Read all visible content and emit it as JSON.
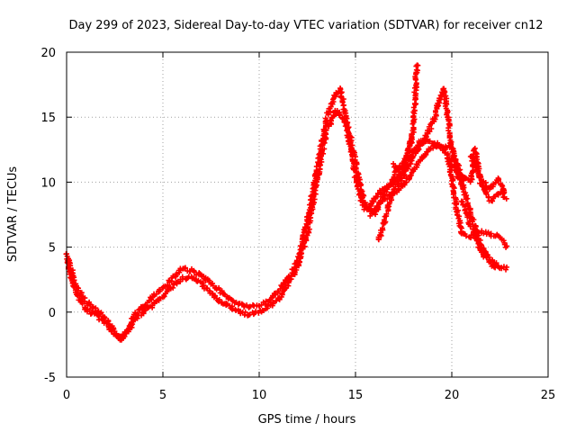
{
  "chart_data": {
    "type": "scatter",
    "title": "Day 299 of 2023, Sidereal Day-to-day VTEC variation (SDTVAR) for receiver cn12",
    "xlabel": "GPS time / hours",
    "ylabel": "SDTVAR / TECUs",
    "xlim": [
      0,
      25
    ],
    "ylim": [
      -5,
      20
    ],
    "xticks": [
      0,
      5,
      10,
      15,
      20,
      25
    ],
    "yticks": [
      -5,
      0,
      5,
      10,
      15,
      20
    ],
    "grid": true,
    "marker": "plus",
    "series": [
      {
        "name": "track-a",
        "color": "#ff0000",
        "x": [
          0.0,
          0.5,
          1.0,
          1.5,
          2.0,
          2.5,
          2.8,
          3.2,
          3.5,
          4.0,
          4.5,
          5.0,
          5.5,
          6.0,
          6.5,
          7.0,
          7.5,
          8.0,
          8.5,
          9.0,
          9.5,
          10.0,
          10.5,
          11.0,
          11.5,
          12.0,
          12.5,
          13.0,
          13.5,
          14.0,
          14.2,
          14.5,
          15.0,
          15.5,
          16.0,
          16.5,
          17.0,
          17.5,
          18.0
        ],
        "y": [
          4.5,
          2.0,
          0.8,
          0.3,
          -0.5,
          -1.5,
          -2.0,
          -1.2,
          -0.2,
          0.4,
          1.2,
          1.8,
          2.6,
          3.4,
          3.2,
          2.8,
          2.2,
          1.6,
          1.0,
          0.6,
          0.4,
          0.5,
          0.9,
          1.6,
          2.5,
          4.0,
          7.0,
          11.0,
          15.0,
          16.8,
          17.2,
          15.0,
          11.5,
          8.0,
          7.6,
          9.0,
          10.5,
          11.5,
          13.5
        ]
      },
      {
        "name": "track-b",
        "color": "#ff0000",
        "x": [
          0.0,
          0.5,
          1.0,
          1.5,
          2.0,
          2.5,
          2.8,
          3.2,
          3.5,
          4.0,
          4.5,
          5.0,
          5.5,
          6.0,
          6.5,
          7.0,
          7.5,
          8.0,
          8.5,
          9.0,
          9.5,
          10.0,
          10.5,
          11.0,
          11.5,
          12.0,
          12.5,
          13.0,
          13.5,
          14.0,
          14.5,
          15.0,
          15.3,
          15.7,
          16.0,
          16.5,
          17.0,
          17.5,
          18.0,
          18.2
        ],
        "y": [
          4.0,
          1.5,
          0.2,
          -0.2,
          -0.8,
          -1.7,
          -2.2,
          -1.5,
          -0.6,
          0.0,
          0.6,
          1.2,
          2.0,
          2.6,
          2.6,
          2.2,
          1.4,
          0.8,
          0.4,
          0.0,
          -0.2,
          0.0,
          0.4,
          1.0,
          2.2,
          3.5,
          6.0,
          10.0,
          14.0,
          15.5,
          14.5,
          10.5,
          8.5,
          8.0,
          8.8,
          9.5,
          10.0,
          11.0,
          14.0,
          19.2
        ]
      },
      {
        "name": "track-c",
        "color": "#ff0000",
        "x": [
          16.2,
          16.6,
          17.0,
          17.5,
          18.0,
          18.5,
          19.0,
          19.4,
          19.6,
          19.8,
          20.0,
          20.3,
          20.6
        ],
        "y": [
          5.5,
          7.5,
          9.5,
          10.5,
          12.0,
          13.0,
          14.5,
          16.5,
          17.2,
          15.0,
          12.5,
          10.5,
          9.5
        ]
      },
      {
        "name": "track-d",
        "color": "#ff0000",
        "x": [
          15.8,
          16.3,
          16.8,
          17.3,
          17.8,
          18.3,
          18.8,
          19.3,
          19.8,
          20.2,
          20.5,
          21.0,
          21.5,
          22.0,
          22.5,
          22.9
        ],
        "y": [
          7.5,
          8.5,
          9.0,
          9.5,
          10.5,
          11.5,
          12.5,
          13.0,
          12.0,
          8.5,
          6.0,
          5.8,
          6.2,
          6.0,
          5.8,
          5.0
        ]
      },
      {
        "name": "track-e",
        "color": "#ff0000",
        "x": [
          17.0,
          17.5,
          18.0,
          18.5,
          19.0,
          19.5,
          20.0,
          20.4,
          20.7,
          21.0,
          21.5,
          22.0,
          22.5,
          22.9
        ],
        "y": [
          11.3,
          11.0,
          12.5,
          13.3,
          13.0,
          12.6,
          12.8,
          11.0,
          9.0,
          7.5,
          5.2,
          4.0,
          3.5,
          3.3
        ]
      },
      {
        "name": "track-f",
        "color": "#ff0000",
        "x": [
          19.8,
          20.2,
          20.5,
          21.0,
          21.2,
          21.5,
          22.0,
          22.5,
          22.9
        ],
        "y": [
          12.0,
          11.0,
          10.5,
          10.0,
          12.5,
          10.0,
          8.5,
          9.2,
          8.8
        ]
      },
      {
        "name": "track-g",
        "color": "#ff0000",
        "x": [
          20.5,
          20.8,
          21.0,
          21.3,
          21.6,
          22.0,
          22.3
        ],
        "y": [
          8.5,
          7.5,
          6.5,
          5.5,
          4.5,
          3.8,
          3.4
        ]
      },
      {
        "name": "track-h",
        "color": "#ff0000",
        "x": [
          21.0,
          21.3,
          21.6,
          22.0,
          22.4,
          22.8
        ],
        "y": [
          12.0,
          11.0,
          10.0,
          9.5,
          10.2,
          9.0
        ]
      }
    ]
  }
}
